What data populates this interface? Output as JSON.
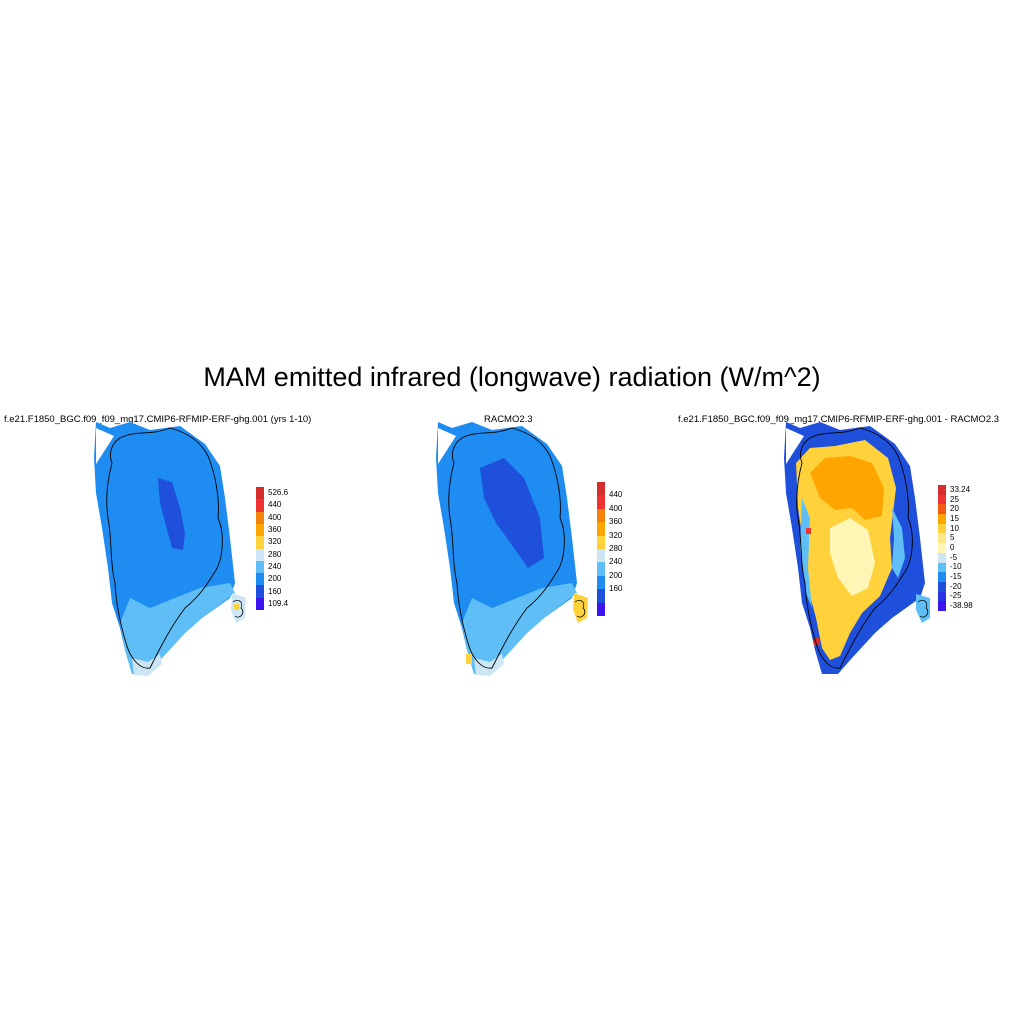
{
  "title": "MAM emitted infrared (longwave) radiation (W/m^2)",
  "panels": [
    {
      "title": "f.e21.F1850_BGC.f09_f09_mg17.CMIP6-RFMIP-ERF-ghg.001 (yrs 1-10)",
      "colorbar": {
        "labels": [
          "526.6",
          "440",
          "400",
          "360",
          "320",
          "280",
          "240",
          "200",
          "160",
          "109.4"
        ],
        "colors": [
          "#d62d2d",
          "#f03232",
          "#f5820a",
          "#ffa500",
          "#ffd23c",
          "#cde6f5",
          "#5fbef5",
          "#1e8cf0",
          "#1e50dc",
          "#3c14f0"
        ]
      }
    },
    {
      "title": "RACMO2.3",
      "colorbar": {
        "labels": [
          "440",
          "400",
          "360",
          "320",
          "280",
          "240",
          "200",
          "160"
        ],
        "colors": [
          "#d62d2d",
          "#f03232",
          "#f5820a",
          "#ffa500",
          "#ffd23c",
          "#cde6f5",
          "#5fbef5",
          "#1e8cf0",
          "#1e50dc",
          "#3c14f0"
        ]
      }
    },
    {
      "title": "f.e21.F1850_BGC.f09_f09_mg17.CMIP6-RFMIP-ERF-ghg.001 - RACMO2.3",
      "colorbar": {
        "labels": [
          "33.24",
          "25",
          "20",
          "15",
          "10",
          "5",
          "0",
          "-5",
          "-10",
          "-15",
          "-20",
          "-25",
          "-38.98"
        ],
        "colors": [
          "#d62d2d",
          "#f03232",
          "#f05a14",
          "#ffa500",
          "#ffd23c",
          "#ffe88c",
          "#fff5b4",
          "#cde6f5",
          "#5fbef5",
          "#1e8cf0",
          "#1e50dc",
          "#2832e6",
          "#3c14f0"
        ]
      }
    }
  ]
}
